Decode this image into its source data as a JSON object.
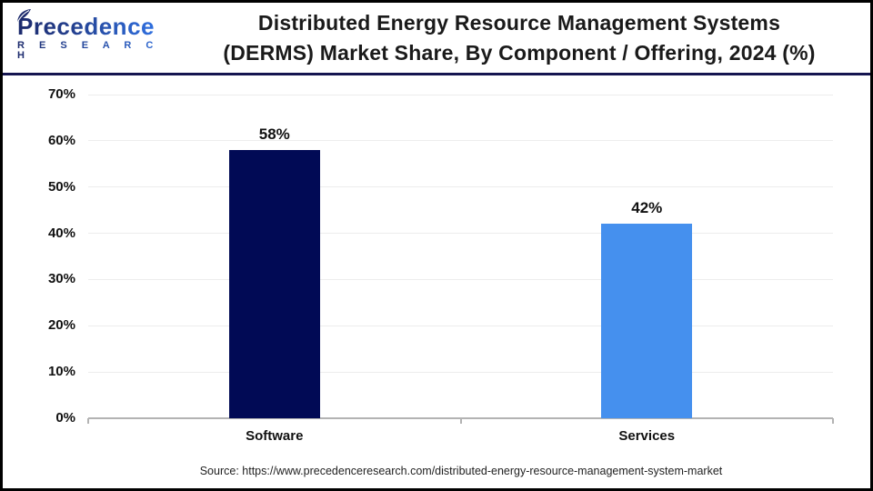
{
  "logo": {
    "brand": "Precedence",
    "sub": "R E S E A R C H"
  },
  "header": {
    "title_line1": "Distributed Energy Resource Management Systems",
    "title_line2": "(DERMS) Market Share, By Component / Offering, 2024 (%)"
  },
  "chart_data": {
    "type": "bar",
    "title": "Distributed Energy Resource Management Systems (DERMS) Market Share, By Component / Offering, 2024 (%)",
    "categories": [
      "Software",
      "Services"
    ],
    "values": [
      58,
      42
    ],
    "value_labels": [
      "58%",
      "42%"
    ],
    "bar_colors": [
      "#010a55",
      "#4590ee"
    ],
    "xlabel": "",
    "ylabel": "",
    "ylim": [
      0,
      70
    ],
    "ytick_labels": [
      "0%",
      "10%",
      "20%",
      "30%",
      "40%",
      "50%",
      "60%",
      "70%"
    ],
    "grid": "horizontal",
    "legend": "none"
  },
  "footer": {
    "source": "Source: https://www.precedenceresearch.com/distributed-energy-resource-management-system-market"
  },
  "colors": {
    "grid": "#ededed",
    "axis": "#b3b3b3",
    "header_divider": "#151550",
    "frame_border": "#000000",
    "title_text": "#1a1a1a"
  }
}
